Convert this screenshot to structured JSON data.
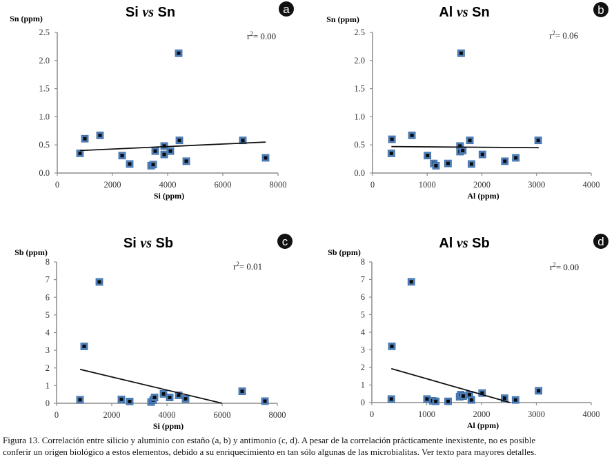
{
  "figure": {
    "caption_line1": "Figura 13. Correlación entre silicio y aluminio con estaño (a, b) y antimonio (c, d). A pesar de la correlación prácticamente inexistente, no es posible",
    "caption_line2": "conferir un origen biológico a estos elementos, debido a su enriquecimiento en tan sólo algunas de las microbialitas. Ver texto para mayores detalles."
  },
  "chart_data": [
    {
      "id": "a",
      "type": "scatter",
      "badge": "a",
      "title_left": "Si ",
      "title_vs": "vs",
      "title_right": " Sn",
      "xlabel": "Si (ppm)",
      "ylabel": "Sn  (ppm)",
      "r2_label": "r",
      "r2_value": "= 0.00",
      "xlim": [
        0,
        8000
      ],
      "ylim": [
        0,
        2.5
      ],
      "xticks": [
        0,
        2000,
        4000,
        6000,
        8000
      ],
      "yticks": [
        "0.0",
        "0.5",
        "1.0",
        "1.5",
        "2.0",
        "2.5"
      ],
      "ytick_values": [
        0,
        0.5,
        1.0,
        1.5,
        2.0,
        2.5
      ],
      "points": [
        [
          825,
          0.35
        ],
        [
          1000,
          0.61
        ],
        [
          1550,
          0.67
        ],
        [
          2350,
          0.31
        ],
        [
          2625,
          0.16
        ],
        [
          3400,
          0.13
        ],
        [
          3475,
          0.15
        ],
        [
          3550,
          0.39
        ],
        [
          3875,
          0.48
        ],
        [
          3875,
          0.33
        ],
        [
          4100,
          0.39
        ],
        [
          4400,
          2.13
        ],
        [
          4425,
          0.58
        ],
        [
          4675,
          0.21
        ],
        [
          6725,
          0.58
        ],
        [
          7550,
          0.27
        ]
      ],
      "trendline": [
        [
          825,
          0.4
        ],
        [
          7550,
          0.55
        ]
      ]
    },
    {
      "id": "b",
      "type": "scatter",
      "badge": "b",
      "title_left": "Al ",
      "title_vs": "vs",
      "title_right": " Sn",
      "xlabel": "Al (ppm)",
      "ylabel": "Sn (ppm)",
      "r2_label": "r",
      "r2_value": "= 0.06",
      "xlim": [
        0,
        4000
      ],
      "ylim": [
        0,
        2.5
      ],
      "xticks": [
        0,
        1000,
        2000,
        3000,
        4000
      ],
      "yticks": [
        "0.0",
        "0.5",
        "1.0",
        "1.5",
        "2.0",
        "2.5"
      ],
      "ytick_values": [
        0,
        0.5,
        1.0,
        1.5,
        2.0,
        2.5
      ],
      "points": [
        [
          355,
          0.6
        ],
        [
          345,
          0.35
        ],
        [
          720,
          0.67
        ],
        [
          1005,
          0.31
        ],
        [
          1120,
          0.17
        ],
        [
          1160,
          0.13
        ],
        [
          1380,
          0.17
        ],
        [
          1600,
          0.48
        ],
        [
          1600,
          0.38
        ],
        [
          1650,
          0.4
        ],
        [
          1620,
          2.13
        ],
        [
          1780,
          0.58
        ],
        [
          1810,
          0.16
        ],
        [
          2010,
          0.33
        ],
        [
          2420,
          0.21
        ],
        [
          2620,
          0.27
        ],
        [
          3030,
          0.58
        ]
      ],
      "trendline": [
        [
          345,
          0.47
        ],
        [
          3040,
          0.45
        ]
      ]
    },
    {
      "id": "c",
      "type": "scatter",
      "badge": "c",
      "title_left": "Si ",
      "title_vs": "vs",
      "title_right": " Sb",
      "xlabel": "Si (ppm)",
      "ylabel": "Sb (ppm)",
      "r2_label": "r",
      "r2_value": "= 0.01",
      "xlim": [
        0,
        8000
      ],
      "ylim": [
        0,
        8
      ],
      "xticks": [
        0,
        2000,
        4000,
        6000,
        8000
      ],
      "yticks": [
        "0",
        "1",
        "2",
        "3",
        "4",
        "5",
        "6",
        "7",
        "8"
      ],
      "ytick_values": [
        0,
        1,
        2,
        3,
        4,
        5,
        6,
        7,
        8
      ],
      "points": [
        [
          850,
          0.2
        ],
        [
          1000,
          3.22
        ],
        [
          1550,
          6.87
        ],
        [
          2350,
          0.22
        ],
        [
          2650,
          0.1
        ],
        [
          3425,
          0.07
        ],
        [
          3500,
          0.18
        ],
        [
          3550,
          0.33
        ],
        [
          3875,
          0.53
        ],
        [
          4100,
          0.33
        ],
        [
          4425,
          0.45
        ],
        [
          4675,
          0.25
        ],
        [
          6725,
          0.68
        ],
        [
          7550,
          0.12
        ]
      ],
      "trendline": [
        [
          850,
          1.92
        ],
        [
          6000,
          0.0
        ]
      ]
    },
    {
      "id": "d",
      "type": "scatter",
      "badge": "d",
      "title_left": "Al ",
      "title_vs": "vs",
      "title_right": " Sb",
      "xlabel": "Al (ppm)",
      "ylabel": "Sb (ppm)",
      "r2_label": "r",
      "r2_value": "= 0.00",
      "xlim": [
        0,
        4000
      ],
      "ylim": [
        0,
        8
      ],
      "xticks": [
        0,
        1000,
        2000,
        3000,
        4000
      ],
      "yticks": [
        "0",
        "1",
        "2",
        "3",
        "4",
        "5",
        "6",
        "7",
        "8"
      ],
      "ytick_values": [
        0,
        1,
        2,
        3,
        4,
        5,
        6,
        7,
        8
      ],
      "points": [
        [
          355,
          0.2
        ],
        [
          365,
          3.2
        ],
        [
          720,
          6.87
        ],
        [
          1005,
          0.2
        ],
        [
          1110,
          0.1
        ],
        [
          1165,
          0.07
        ],
        [
          1390,
          0.07
        ],
        [
          1600,
          0.33
        ],
        [
          1620,
          0.45
        ],
        [
          1665,
          0.37
        ],
        [
          1780,
          0.45
        ],
        [
          1815,
          0.15
        ],
        [
          2010,
          0.54
        ],
        [
          2420,
          0.25
        ],
        [
          2620,
          0.15
        ],
        [
          3040,
          0.67
        ]
      ],
      "trendline": [
        [
          355,
          1.93
        ],
        [
          2520,
          0.0
        ]
      ]
    }
  ],
  "colors": {
    "marker_outer": "#4f81bd",
    "marker_outer_dark": "#3a6aa0",
    "marker_inner": "#0a0a0a",
    "axis": "#8c8c8c",
    "trendline": "#111111",
    "badge_bg": "#111111"
  }
}
